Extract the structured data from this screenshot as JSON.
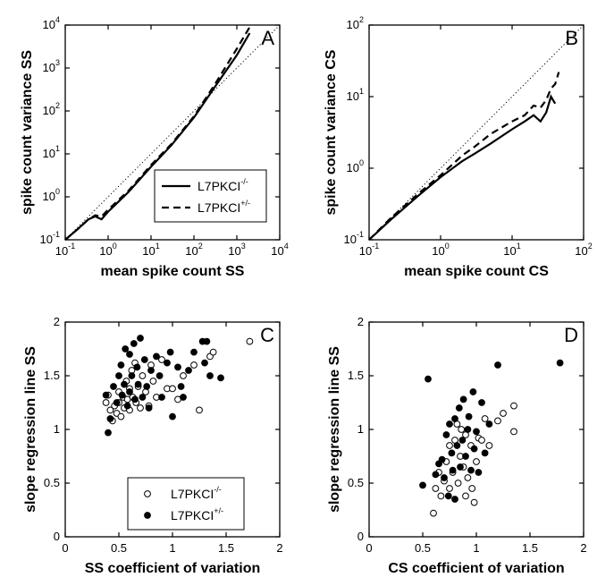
{
  "chart_data": [
    {
      "id": "A",
      "type": "line",
      "panel_label": "A",
      "xlabel": "mean spike count SS",
      "ylabel": "spike count variance SS",
      "xscale": "log",
      "yscale": "log",
      "xlim": [
        0.1,
        10000
      ],
      "ylim": [
        0.1,
        10000
      ],
      "x_tick_labels": [
        "10",
        "10",
        "10",
        "10",
        "10",
        "10"
      ],
      "x_tick_exponents": [
        "-1",
        "0",
        "1",
        "2",
        "3",
        "4"
      ],
      "y_tick_labels": [
        "10",
        "10",
        "10",
        "10",
        "10",
        "10"
      ],
      "y_tick_exponents": [
        "-1",
        "0",
        "1",
        "2",
        "3",
        "4"
      ],
      "reference_line": "identity (dotted)",
      "legend_position": "lower-right",
      "series": [
        {
          "name": "L7PKCI",
          "name_superscript": "-/-",
          "style": "solid",
          "points": [
            [
              0.1,
              0.1
            ],
            [
              0.2,
              0.18
            ],
            [
              0.35,
              0.3
            ],
            [
              0.5,
              0.35
            ],
            [
              0.7,
              0.3
            ],
            [
              1,
              0.45
            ],
            [
              3,
              1.3
            ],
            [
              10,
              5
            ],
            [
              30,
              16
            ],
            [
              100,
              70
            ],
            [
              300,
              350
            ],
            [
              1000,
              2000
            ],
            [
              2000,
              6500
            ]
          ]
        },
        {
          "name": "L7PKCI",
          "name_superscript": "+/-",
          "style": "dashed",
          "points": [
            [
              0.1,
              0.1
            ],
            [
              0.2,
              0.18
            ],
            [
              0.35,
              0.3
            ],
            [
              0.5,
              0.37
            ],
            [
              0.7,
              0.35
            ],
            [
              1,
              0.5
            ],
            [
              3,
              1.4
            ],
            [
              10,
              5.5
            ],
            [
              30,
              17
            ],
            [
              100,
              75
            ],
            [
              300,
              400
            ],
            [
              1000,
              2800
            ],
            [
              2000,
              9000
            ]
          ]
        }
      ]
    },
    {
      "id": "B",
      "type": "line",
      "panel_label": "B",
      "xlabel": "mean spike count CS",
      "ylabel": "spike count variance CS",
      "xscale": "log",
      "yscale": "log",
      "xlim": [
        0.1,
        100
      ],
      "ylim": [
        0.1,
        100
      ],
      "x_tick_labels": [
        "10",
        "10",
        "10",
        "10"
      ],
      "x_tick_exponents": [
        "-1",
        "0",
        "1",
        "2"
      ],
      "y_tick_labels": [
        "10",
        "10",
        "10",
        "10"
      ],
      "y_tick_exponents": [
        "-1",
        "0",
        "1",
        "2"
      ],
      "reference_line": "identity (dotted)",
      "series": [
        {
          "name": "L7PKCI",
          "name_superscript": "-/-",
          "style": "solid",
          "points": [
            [
              0.1,
              0.1
            ],
            [
              0.2,
              0.19
            ],
            [
              0.5,
              0.42
            ],
            [
              1,
              0.75
            ],
            [
              2,
              1.25
            ],
            [
              3,
              1.6
            ],
            [
              5,
              2.2
            ],
            [
              10,
              3.5
            ],
            [
              15,
              4.5
            ],
            [
              20,
              5.5
            ],
            [
              25,
              4.5
            ],
            [
              30,
              6
            ],
            [
              35,
              10
            ],
            [
              40,
              8
            ]
          ]
        },
        {
          "name": "L7PKCI",
          "name_superscript": "+/-",
          "style": "dashed",
          "points": [
            [
              0.1,
              0.1
            ],
            [
              0.2,
              0.2
            ],
            [
              0.5,
              0.45
            ],
            [
              1,
              0.8
            ],
            [
              2,
              1.5
            ],
            [
              3,
              2
            ],
            [
              5,
              3
            ],
            [
              10,
              4.5
            ],
            [
              15,
              5.5
            ],
            [
              20,
              7.5
            ],
            [
              25,
              7
            ],
            [
              30,
              9
            ],
            [
              35,
              13
            ],
            [
              40,
              15
            ],
            [
              45,
              22
            ]
          ]
        }
      ]
    },
    {
      "id": "C",
      "type": "scatter",
      "panel_label": "C",
      "xlabel": "SS coefficient of variation",
      "ylabel": "slope regression line SS",
      "xlim": [
        0,
        2
      ],
      "ylim": [
        0,
        2
      ],
      "x_tick_labels": [
        "0",
        "0.5",
        "1",
        "1.5",
        "2"
      ],
      "y_tick_labels": [
        "0",
        "0.5",
        "1",
        "1.5",
        "2"
      ],
      "legend_position": "lower-center",
      "series": [
        {
          "name": "L7PKCI",
          "name_superscript": "-/-",
          "marker": "open-circle",
          "points": [
            [
              0.38,
              1.25
            ],
            [
              0.4,
              1.32
            ],
            [
              0.42,
              1.18
            ],
            [
              0.44,
              1.08
            ],
            [
              0.46,
              1.22
            ],
            [
              0.48,
              1.15
            ],
            [
              0.5,
              1.35
            ],
            [
              0.5,
              1.25
            ],
            [
              0.52,
              1.12
            ],
            [
              0.54,
              1.3
            ],
            [
              0.55,
              1.2
            ],
            [
              0.57,
              1.45
            ],
            [
              0.58,
              1.28
            ],
            [
              0.6,
              1.38
            ],
            [
              0.6,
              1.18
            ],
            [
              0.62,
              1.55
            ],
            [
              0.63,
              1.3
            ],
            [
              0.65,
              1.62
            ],
            [
              0.66,
              1.25
            ],
            [
              0.68,
              1.4
            ],
            [
              0.7,
              1.2
            ],
            [
              0.72,
              1.5
            ],
            [
              0.75,
              1.35
            ],
            [
              0.78,
              1.22
            ],
            [
              0.8,
              1.6
            ],
            [
              0.82,
              1.45
            ],
            [
              0.85,
              1.3
            ],
            [
              0.9,
              1.65
            ],
            [
              0.95,
              1.38
            ],
            [
              1.0,
              1.38
            ],
            [
              1.05,
              1.28
            ],
            [
              1.1,
              1.5
            ],
            [
              1.2,
              1.6
            ],
            [
              1.25,
              1.18
            ],
            [
              1.35,
              1.68
            ],
            [
              1.38,
              1.72
            ],
            [
              1.72,
              1.82
            ]
          ]
        },
        {
          "name": "L7PKCI",
          "name_superscript": "+/-",
          "marker": "filled-circle",
          "points": [
            [
              0.38,
              1.32
            ],
            [
              0.4,
              0.97
            ],
            [
              0.42,
              1.1
            ],
            [
              0.45,
              1.4
            ],
            [
              0.48,
              1.25
            ],
            [
              0.5,
              1.5
            ],
            [
              0.52,
              1.6
            ],
            [
              0.53,
              1.32
            ],
            [
              0.55,
              1.42
            ],
            [
              0.56,
              1.75
            ],
            [
              0.58,
              1.22
            ],
            [
              0.6,
              1.7
            ],
            [
              0.6,
              1.35
            ],
            [
              0.62,
              1.5
            ],
            [
              0.64,
              1.8
            ],
            [
              0.65,
              1.28
            ],
            [
              0.67,
              1.58
            ],
            [
              0.68,
              1.42
            ],
            [
              0.7,
              1.85
            ],
            [
              0.72,
              1.3
            ],
            [
              0.74,
              1.65
            ],
            [
              0.76,
              1.4
            ],
            [
              0.78,
              1.2
            ],
            [
              0.8,
              1.55
            ],
            [
              0.85,
              1.68
            ],
            [
              0.88,
              1.5
            ],
            [
              0.9,
              1.3
            ],
            [
              0.95,
              1.62
            ],
            [
              0.98,
              1.72
            ],
            [
              1.0,
              1.12
            ],
            [
              1.05,
              1.58
            ],
            [
              1.08,
              1.4
            ],
            [
              1.1,
              1.3
            ],
            [
              1.15,
              1.55
            ],
            [
              1.2,
              1.72
            ],
            [
              1.28,
              1.82
            ],
            [
              1.32,
              1.82
            ],
            [
              1.35,
              1.5
            ],
            [
              1.3,
              1.62
            ],
            [
              1.45,
              1.48
            ]
          ]
        }
      ]
    },
    {
      "id": "D",
      "type": "scatter",
      "panel_label": "D",
      "xlabel": "CS coefficient of variation",
      "ylabel": "slope regression line SS",
      "xlim": [
        0,
        2
      ],
      "ylim": [
        0,
        2
      ],
      "x_tick_labels": [
        "0",
        "0.5",
        "1",
        "1.5",
        "2"
      ],
      "y_tick_labels": [
        "0",
        "0.5",
        "1",
        "1.5",
        "2"
      ],
      "series": [
        {
          "name": "L7PKCI",
          "name_superscript": "-/-",
          "marker": "open-circle",
          "points": [
            [
              0.6,
              0.22
            ],
            [
              0.62,
              0.45
            ],
            [
              0.65,
              0.6
            ],
            [
              0.67,
              0.38
            ],
            [
              0.7,
              0.52
            ],
            [
              0.72,
              0.7
            ],
            [
              0.75,
              0.85
            ],
            [
              0.75,
              0.45
            ],
            [
              0.78,
              0.6
            ],
            [
              0.8,
              0.9
            ],
            [
              0.82,
              1.05
            ],
            [
              0.83,
              0.5
            ],
            [
              0.85,
              0.75
            ],
            [
              0.86,
              1.0
            ],
            [
              0.88,
              0.65
            ],
            [
              0.9,
              0.95
            ],
            [
              0.9,
              0.38
            ],
            [
              0.92,
              0.55
            ],
            [
              0.95,
              0.85
            ],
            [
              0.96,
              0.45
            ],
            [
              0.98,
              0.32
            ],
            [
              1.0,
              0.7
            ],
            [
              1.02,
              0.92
            ],
            [
              1.05,
              0.9
            ],
            [
              1.08,
              1.1
            ],
            [
              1.12,
              0.85
            ],
            [
              1.2,
              1.08
            ],
            [
              1.25,
              1.15
            ],
            [
              1.35,
              1.22
            ],
            [
              1.35,
              0.98
            ]
          ]
        },
        {
          "name": "L7PKCI",
          "name_superscript": "+/-",
          "marker": "filled-circle",
          "points": [
            [
              0.5,
              0.48
            ],
            [
              0.55,
              1.47
            ],
            [
              0.62,
              0.58
            ],
            [
              0.65,
              0.68
            ],
            [
              0.68,
              0.72
            ],
            [
              0.7,
              0.55
            ],
            [
              0.72,
              0.95
            ],
            [
              0.74,
              0.38
            ],
            [
              0.75,
              1.05
            ],
            [
              0.77,
              0.78
            ],
            [
              0.78,
              0.62
            ],
            [
              0.8,
              1.1
            ],
            [
              0.8,
              0.35
            ],
            [
              0.82,
              0.85
            ],
            [
              0.84,
              1.2
            ],
            [
              0.85,
              0.65
            ],
            [
              0.87,
              0.9
            ],
            [
              0.88,
              1.28
            ],
            [
              0.9,
              0.75
            ],
            [
              0.92,
              1.0
            ],
            [
              0.93,
              1.12
            ],
            [
              0.95,
              0.62
            ],
            [
              0.97,
              1.35
            ],
            [
              0.98,
              0.82
            ],
            [
              1.0,
              0.98
            ],
            [
              1.02,
              0.6
            ],
            [
              1.05,
              1.25
            ],
            [
              1.08,
              0.78
            ],
            [
              1.12,
              1.05
            ],
            [
              1.2,
              1.6
            ],
            [
              1.78,
              1.62
            ]
          ]
        }
      ]
    }
  ]
}
